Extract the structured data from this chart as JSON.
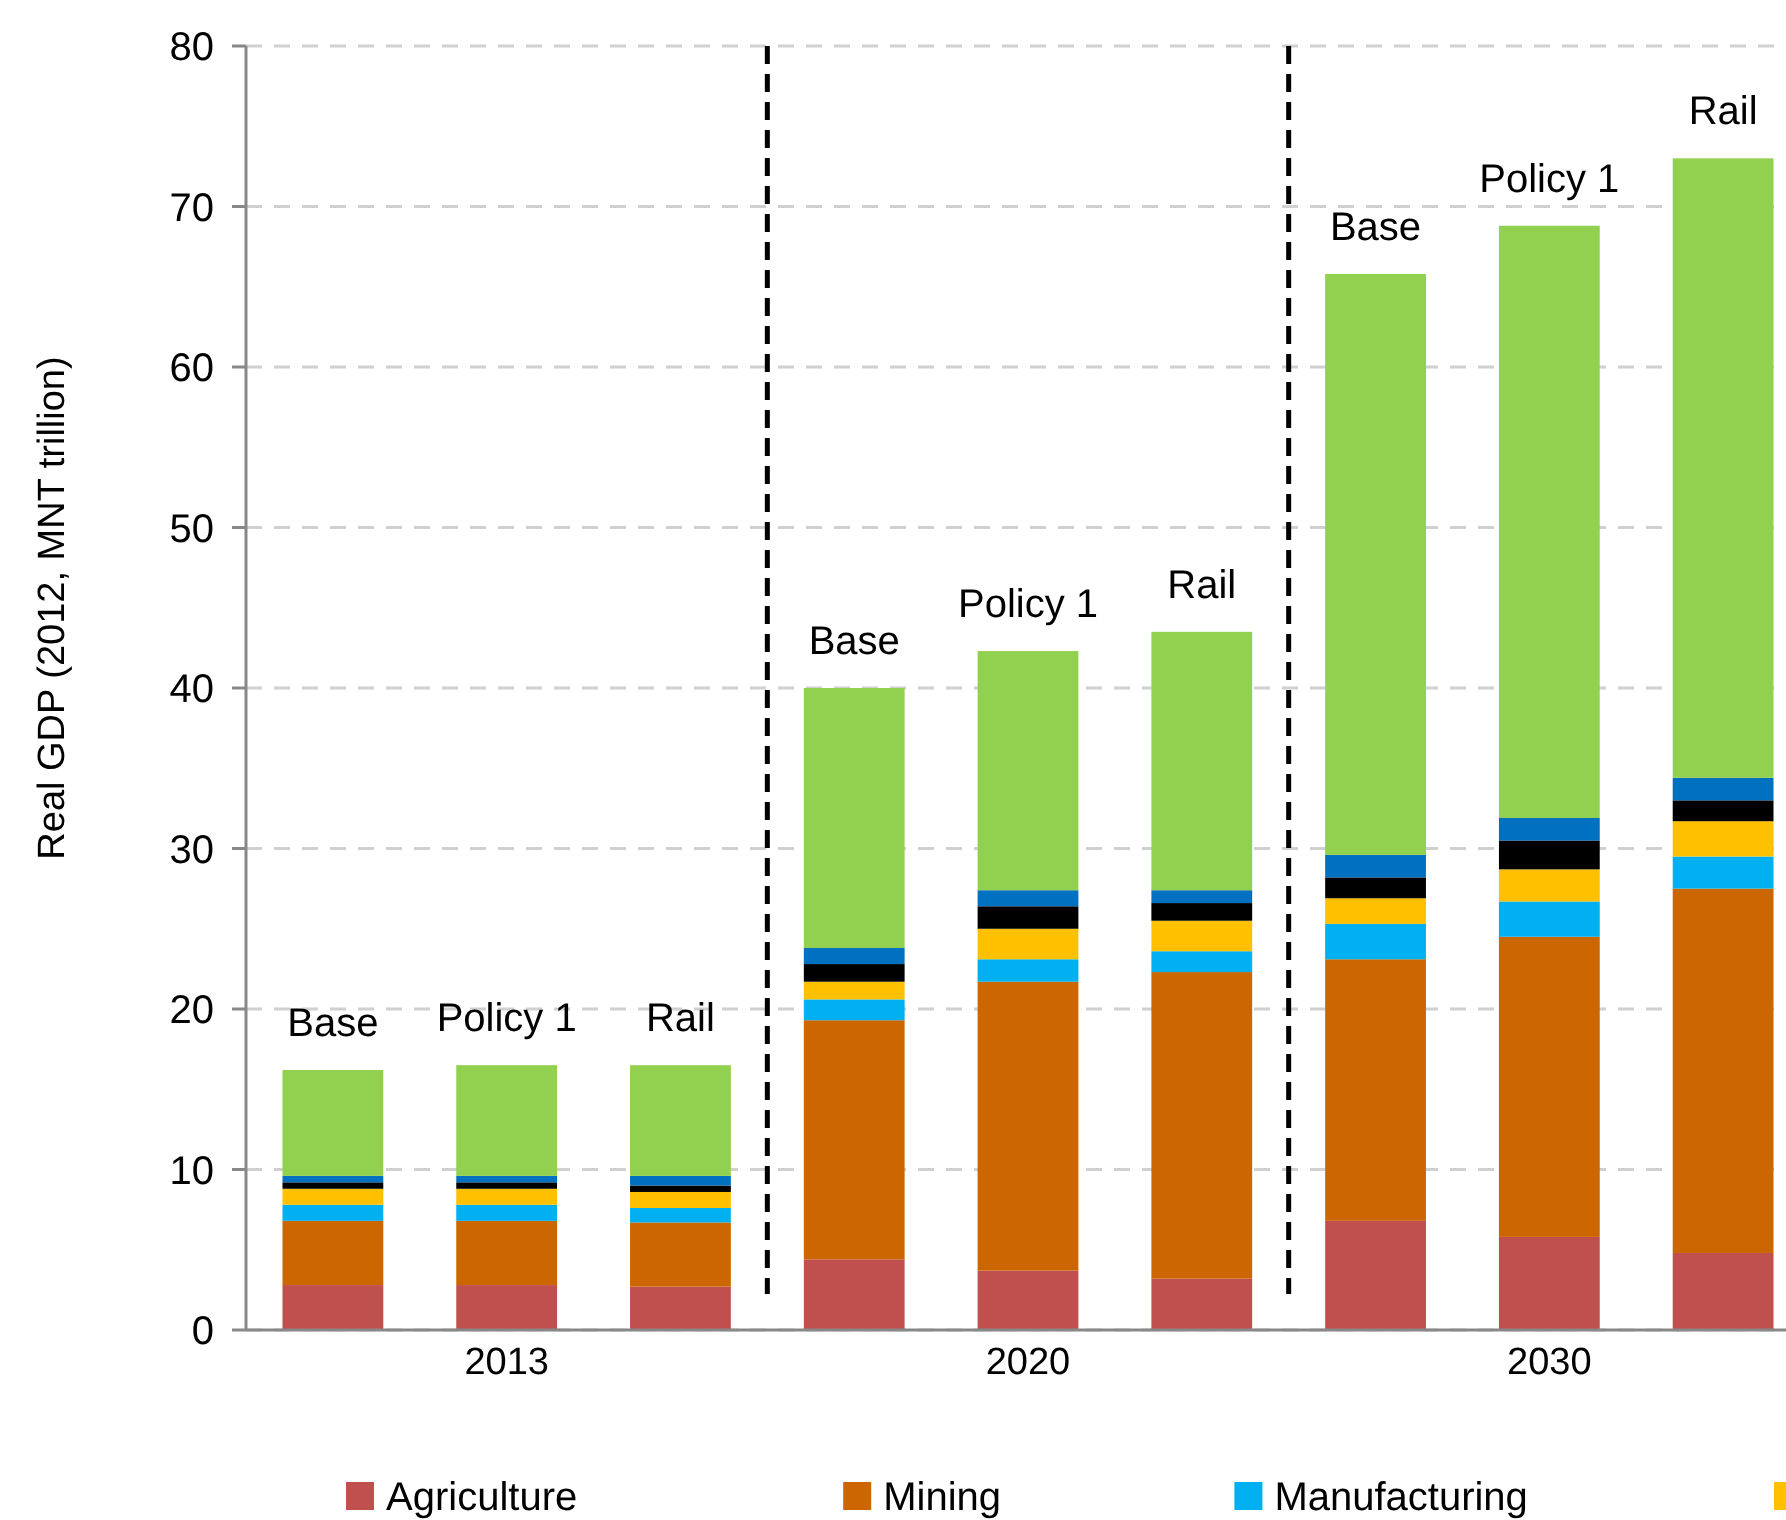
{
  "chart_data": {
    "type": "bar",
    "stacked": true,
    "ylabel": "Real GDP (2012, MNT trillion)",
    "categories": [
      "Base",
      "Policy 1",
      "Rail",
      "Base",
      "Policy 1",
      "Rail",
      "Base",
      "Policy 1",
      "Rail"
    ],
    "annotations": [
      "2013",
      "2020",
      "2030"
    ],
    "series": [
      {
        "name": "Agriculture",
        "color": "#c0504d",
        "values": [
          2.8,
          2.8,
          2.7,
          4.4,
          3.7,
          3.2,
          6.8,
          5.8,
          4.8
        ]
      },
      {
        "name": "Mining",
        "color": "#cc6600",
        "values": [
          4.0,
          4.0,
          4.0,
          14.9,
          18.0,
          19.1,
          16.3,
          18.7,
          22.7
        ]
      },
      {
        "name": "Manufacturing",
        "color": "#00b0f0",
        "values": [
          1.0,
          1.0,
          0.9,
          1.3,
          1.4,
          1.3,
          2.2,
          2.2,
          2.0
        ]
      },
      {
        "color": "#ffc000",
        "values": [
          1.0,
          1.0,
          1.0,
          1.1,
          1.9,
          1.9,
          1.6,
          2.0,
          2.2
        ]
      },
      {
        "color": "#000000",
        "values": [
          0.4,
          0.4,
          0.4,
          1.1,
          1.4,
          1.1,
          1.3,
          1.8,
          1.3
        ]
      },
      {
        "color": "#0070c0",
        "values": [
          0.4,
          0.4,
          0.6,
          1.0,
          1.0,
          0.8,
          1.4,
          1.4,
          1.4
        ]
      },
      {
        "color": "#92d050",
        "values": [
          6.6,
          6.9,
          6.9,
          16.2,
          14.9,
          16.1,
          36.2,
          36.9,
          38.6
        ]
      }
    ],
    "ylim": [
      0,
      80
    ],
    "yticks": [
      0,
      10,
      20,
      30,
      40,
      50,
      60,
      70,
      80
    ],
    "grid": "y",
    "legend": "bottom"
  }
}
